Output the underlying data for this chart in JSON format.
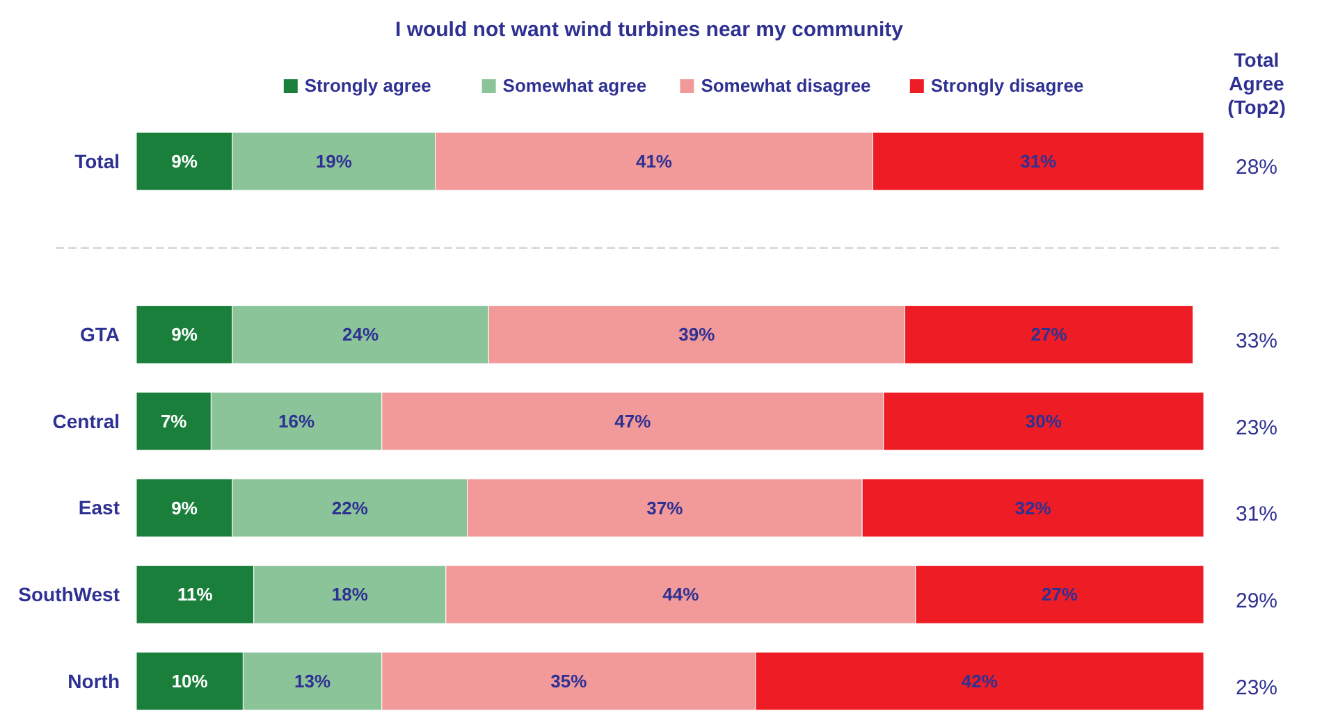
{
  "chart_data": {
    "type": "bar",
    "orientation": "horizontal",
    "stacked": true,
    "title": "I would not want wind turbines near my community",
    "categories": [
      "Total",
      null,
      "GTA",
      "Central",
      "East",
      "SouthWest",
      "North"
    ],
    "xlim": [
      0,
      100
    ],
    "tick_labels": "y",
    "legend": "top",
    "series": [
      {
        "name": "Strongly agree",
        "color": "#1b7f3c",
        "values": [
          9,
          null,
          9,
          7,
          9,
          11,
          10
        ],
        "value_labels": [
          "9%",
          null,
          "9%",
          "7%",
          "9%",
          "11%",
          "10%"
        ]
      },
      {
        "name": "Somewhat agree",
        "color": "#8cc49a",
        "values": [
          19,
          null,
          24,
          16,
          22,
          18,
          13
        ],
        "value_labels": [
          "19%",
          null,
          "24%",
          "16%",
          "22%",
          "18%",
          "13%"
        ]
      },
      {
        "name": "Somewhat disagree",
        "color": "#f29a9a",
        "values": [
          41,
          null,
          39,
          47,
          37,
          44,
          35
        ],
        "value_labels": [
          "41%",
          null,
          "39%",
          "47%",
          "37%",
          "44%",
          "35%"
        ]
      },
      {
        "name": "Strongly disagree",
        "color": "#ee1c25",
        "values": [
          31,
          null,
          27,
          30,
          32,
          27,
          42
        ],
        "value_labels": [
          "31%",
          null,
          "27%",
          "30%",
          "32%",
          "27%",
          "42%"
        ]
      }
    ],
    "annotations": [
      "Total Agree (Top2)",
      "28%",
      "33%",
      "23%",
      "31%",
      "29%",
      "23%"
    ]
  }
}
